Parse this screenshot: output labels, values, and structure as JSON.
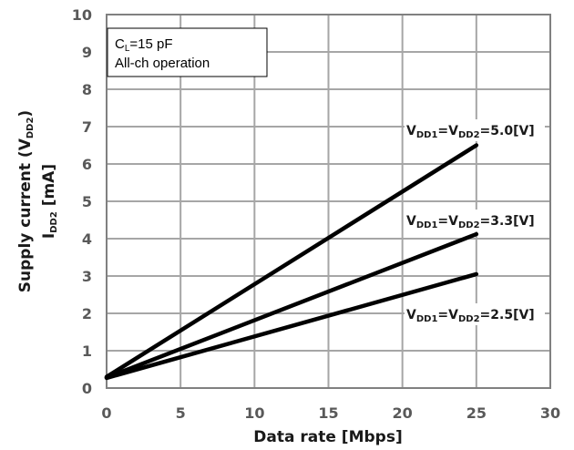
{
  "chart_data": {
    "type": "line",
    "xlabel": "Data rate [Mbps]",
    "ylabel": {
      "line1_prefix": "Supply current (V",
      "line1_sub": "DD2",
      "line1_suffix": ")",
      "line2_prefix": "I",
      "line2_sub": "DD2",
      "line2_suffix": " [mA]"
    },
    "xlim": [
      0,
      30
    ],
    "ylim": [
      0,
      10
    ],
    "xticks": [
      0,
      5,
      10,
      15,
      20,
      25,
      30
    ],
    "yticks": [
      0,
      1,
      2,
      3,
      4,
      5,
      6,
      7,
      8,
      9,
      10
    ],
    "grid": true,
    "annotation": {
      "line1_prefix": "C",
      "line1_sub": "L",
      "line1_suffix": "=15 pF",
      "line2": "All-ch operation"
    },
    "series": [
      {
        "label_parts": [
          "V",
          "DD1",
          "=V",
          "DD2",
          "=5.0[V]"
        ],
        "x": [
          0,
          25
        ],
        "y": [
          0.3,
          6.5
        ]
      },
      {
        "label_parts": [
          "V",
          "DD1",
          "=V",
          "DD2",
          "=3.3[V]"
        ],
        "x": [
          0,
          25
        ],
        "y": [
          0.28,
          4.12
        ]
      },
      {
        "label_parts": [
          "V",
          "DD1",
          "=V",
          "DD2",
          "=2.5[V]"
        ],
        "x": [
          0,
          25
        ],
        "y": [
          0.27,
          3.05
        ]
      }
    ],
    "colors": {
      "line": "#000000",
      "grid": "#a6a6a6",
      "frame": "#808080",
      "tick_text": "#595959"
    }
  }
}
